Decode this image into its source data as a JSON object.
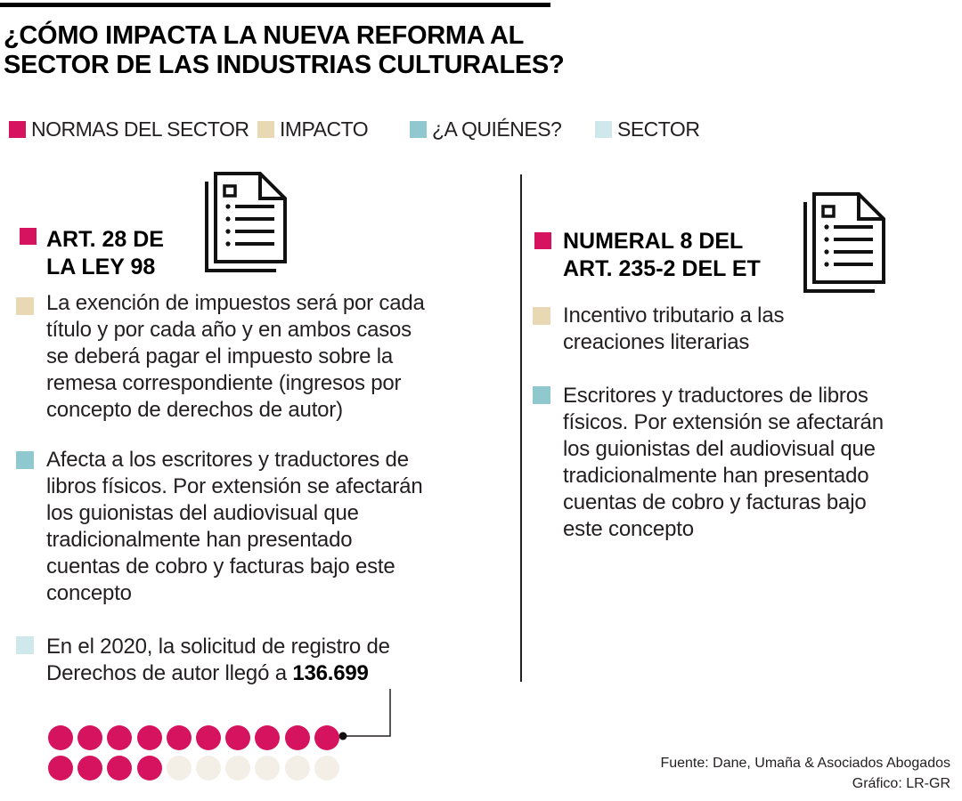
{
  "colors": {
    "normas": "#d6135f",
    "impacto": "#e9d8b4",
    "quienes": "#8fc9cf",
    "sector": "#cfe8eb",
    "dot_filled": "#d6135f",
    "dot_empty": "#f3efe6"
  },
  "title": {
    "line1": "¿CÓMO IMPACTA LA NUEVA REFORMA AL",
    "line2": "SECTOR DE LAS INDUSTRIAS CULTURALES?"
  },
  "legend": [
    {
      "label": "NORMAS DEL SECTOR",
      "color": "#d6135f"
    },
    {
      "label": "IMPACTO",
      "color": "#e9d8b4"
    },
    {
      "label": "¿A QUIÉNES?",
      "color": "#8fc9cf"
    },
    {
      "label": "SECTOR",
      "color": "#cfe8eb"
    }
  ],
  "icons": [
    "document-icon",
    "document-icon"
  ],
  "left": {
    "heading_line1": "ART. 28 DE",
    "heading_line2": "LA LEY 98",
    "impacto": [
      "La exención de  impuestos será por cada",
      "título y por cada año y en ambos casos",
      "se deberá pagar el impuesto sobre la",
      "remesa correspondiente (ingresos por",
      "concepto de derechos de autor)"
    ],
    "quienes": [
      "Afecta a los escritores y traductores de",
      "libros físicos. Por extensión se afectarán",
      "los guionistas del audiovisual que",
      "tradicionalmente han presentado",
      "cuentas de cobro y facturas bajo este",
      "concepto"
    ],
    "sector_line1": "En el 2020, la solicitud de registro de",
    "sector_line2_prefix": "Derechos de autor llegó a ",
    "sector_value": "136.699"
  },
  "right": {
    "heading_line1": "NUMERAL 8 DEL",
    "heading_line2": "ART. 235-2 DEL ET",
    "impacto": [
      "Incentivo tributario a las",
      "creaciones literarias"
    ],
    "quienes": [
      "Escritores y traductores de libros",
      "físicos. Por extensión se afectarán",
      "los guionistas del audiovisual que",
      "tradicionalmente han presentado",
      "cuentas de cobro y facturas bajo",
      "este concepto"
    ]
  },
  "dots": {
    "total": 20,
    "filled": 14
  },
  "source": {
    "line1": "Fuente: Dane, Umaña & Asociados Abogados",
    "line2": "Gráfico: LR-GR"
  }
}
